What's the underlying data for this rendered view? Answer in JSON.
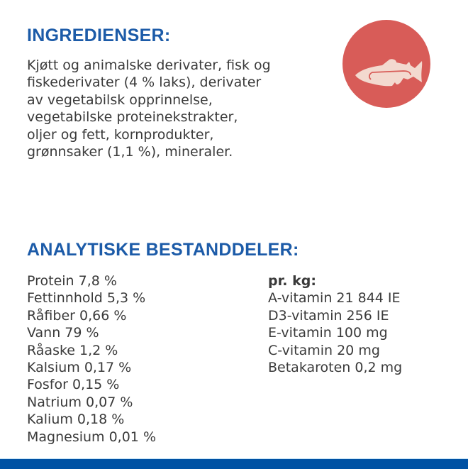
{
  "ingredients": {
    "heading": "INGREDIENSER:",
    "lines": [
      "Kjøtt og animalske derivater, fisk og",
      "fiskederivater (4 % laks), derivater",
      "av vegetabilsk opprinnelse,",
      "vegetabilske proteinekstrakter,",
      "oljer og fett, kornprodukter,",
      "grønnsaker (1,1 %), mineraler."
    ],
    "icon": "fish-icon"
  },
  "analytical": {
    "heading": "ANALYTISKE BESTANDDELER:",
    "left": [
      "Protein 7,8 %",
      "Fettinnhold 5,3 %",
      "Råfiber 0,66 %",
      "Vann 79 %",
      "Råaske 1,2 %",
      "Kalsium 0,17 %",
      "Fosfor 0,15 %",
      "Natrium 0,07 %",
      "Kalium 0,18 %",
      "Magnesium 0,01 %"
    ],
    "right_heading": "pr. kg:",
    "right": [
      "A-vitamin 21 844 IE",
      "D3-vitamin 256 IE",
      "E-vitamin 100 mg",
      "C-vitamin 20 mg",
      "Betakaroten 0,2 mg"
    ]
  },
  "colors": {
    "heading": "#1c5ba8",
    "circle": "#d85c58",
    "fish": "#f3d9cf",
    "bar": "#0052a4"
  }
}
